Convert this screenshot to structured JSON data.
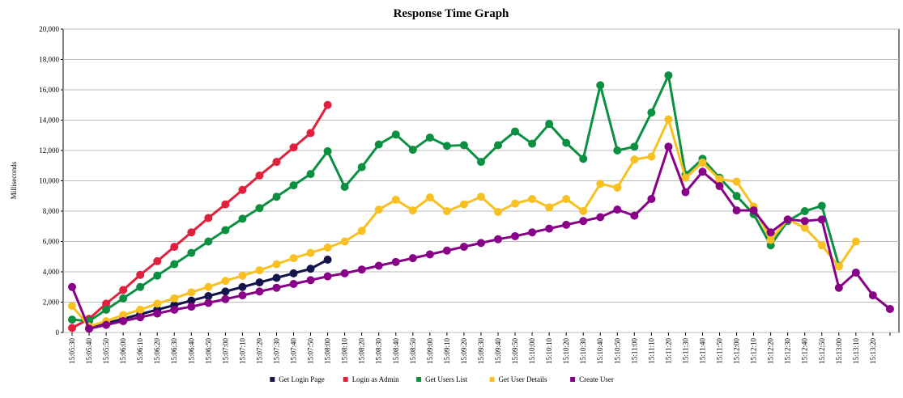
{
  "chart_data": {
    "type": "line",
    "title": "Response Time Graph",
    "y_label": "Milliseconds",
    "categories": [
      "15:05:30",
      "15:05:40",
      "15:05:50",
      "15:06:00",
      "15:06:10",
      "15:06:20",
      "15:06:30",
      "15:06:40",
      "15:06:50",
      "15:07:00",
      "15:07:10",
      "15:07:20",
      "15:07:30",
      "15:07:40",
      "15:07:50",
      "15:08:00",
      "15:08:10",
      "15:08:20",
      "15:08:30",
      "15:08:40",
      "15:08:50",
      "15:09:00",
      "15:09:10",
      "15:09:20",
      "15:09:30",
      "15:09:40",
      "15:09:50",
      "15:10:00",
      "15:10:10",
      "15:10:20",
      "15:10:30",
      "15:10:40",
      "15:10:50",
      "15:11:00",
      "15:11:10",
      "15:11:20",
      "15:11:30",
      "15:11:40",
      "15:11:50",
      "15:12:00",
      "15:12:10",
      "15:12:20",
      "15:12:30",
      "15:12:40",
      "15:12:50",
      "15:13:00",
      "15:13:10",
      "15:13:20",
      null
    ],
    "ylim": [
      0,
      20000
    ],
    "yticks": [
      0,
      {
        "value": 2000,
        "label": "2,000"
      },
      {
        "value": 4000,
        "label": "4,000"
      },
      {
        "value": 6000,
        "label": "6,000"
      },
      {
        "value": 8000,
        "label": "8,000"
      },
      {
        "value": 10000,
        "label": "10,000"
      },
      {
        "value": 12000,
        "label": "12,000"
      },
      {
        "value": 14000,
        "label": "14,000"
      },
      {
        "value": 16000,
        "label": "16,000"
      },
      {
        "value": 18000,
        "label": "18,000"
      },
      {
        "value": 20000,
        "label": "20,000"
      }
    ],
    "grid": true,
    "legend": "bottom",
    "series": [
      {
        "name": "Get Login Page",
        "color": "#14144a",
        "values": [
          null,
          300,
          600,
          900,
          1200,
          1500,
          1800,
          2100,
          2400,
          2700,
          3000,
          3300,
          3600,
          3900,
          4200,
          4800,
          null,
          null,
          null,
          null,
          null,
          null,
          null,
          null,
          null,
          null,
          null,
          null,
          null,
          null,
          null,
          null,
          null,
          null,
          null,
          null,
          null,
          null,
          null,
          null,
          null,
          null,
          null,
          null,
          null,
          null,
          null,
          null,
          null
        ]
      },
      {
        "name": "Login as Admin",
        "color": "#e0203c",
        "values": [
          300,
          900,
          1900,
          2800,
          3800,
          4700,
          5650,
          6600,
          7550,
          8450,
          9400,
          10350,
          11250,
          12200,
          13150,
          15000,
          null,
          null,
          null,
          null,
          null,
          null,
          null,
          null,
          null,
          null,
          null,
          null,
          null,
          null,
          null,
          null,
          null,
          null,
          null,
          null,
          null,
          null,
          null,
          null,
          null,
          null,
          null,
          null,
          null,
          null,
          null,
          null,
          null
        ]
      },
      {
        "name": "Get Users List",
        "color": "#0a9040",
        "values": [
          850,
          750,
          1500,
          2250,
          3000,
          3750,
          4500,
          5250,
          6000,
          6750,
          7500,
          8200,
          8950,
          9700,
          10450,
          11950,
          9600,
          10900,
          12400,
          13050,
          12050,
          12850,
          12300,
          12350,
          11250,
          12350,
          13250,
          12450,
          13750,
          12500,
          11450,
          16300,
          12000,
          12250,
          14500,
          16950,
          10400,
          11450,
          10200,
          9000,
          7800,
          5750,
          7350,
          8000,
          8350,
          4400,
          null,
          null,
          null
        ]
      },
      {
        "name": "Get User Details",
        "color": "#f8c020",
        "values": [
          1750,
          400,
          750,
          1150,
          1500,
          1900,
          2250,
          2650,
          3000,
          3400,
          3750,
          4100,
          4500,
          4900,
          5250,
          5600,
          6000,
          6700,
          8100,
          8750,
          8050,
          8900,
          8000,
          8450,
          8950,
          7950,
          8500,
          8800,
          8250,
          8800,
          8000,
          9800,
          9550,
          11400,
          11600,
          14050,
          10200,
          11200,
          10100,
          9950,
          8300,
          6100,
          7450,
          6900,
          5750,
          4350,
          6000,
          null,
          null
        ]
      },
      {
        "name": "Create User",
        "color": "#880088",
        "values": [
          3000,
          250,
          500,
          750,
          1000,
          1250,
          1500,
          1700,
          1950,
          2200,
          2450,
          2700,
          2950,
          3200,
          3450,
          3700,
          3900,
          4150,
          4400,
          4650,
          4900,
          5150,
          5400,
          5650,
          5900,
          6150,
          6350,
          6600,
          6850,
          7100,
          7350,
          7600,
          8100,
          7700,
          8800,
          12250,
          9250,
          10600,
          9650,
          8050,
          8050,
          6600,
          7450,
          7350,
          7450,
          2950,
          3950,
          2450,
          1550
        ]
      }
    ]
  }
}
